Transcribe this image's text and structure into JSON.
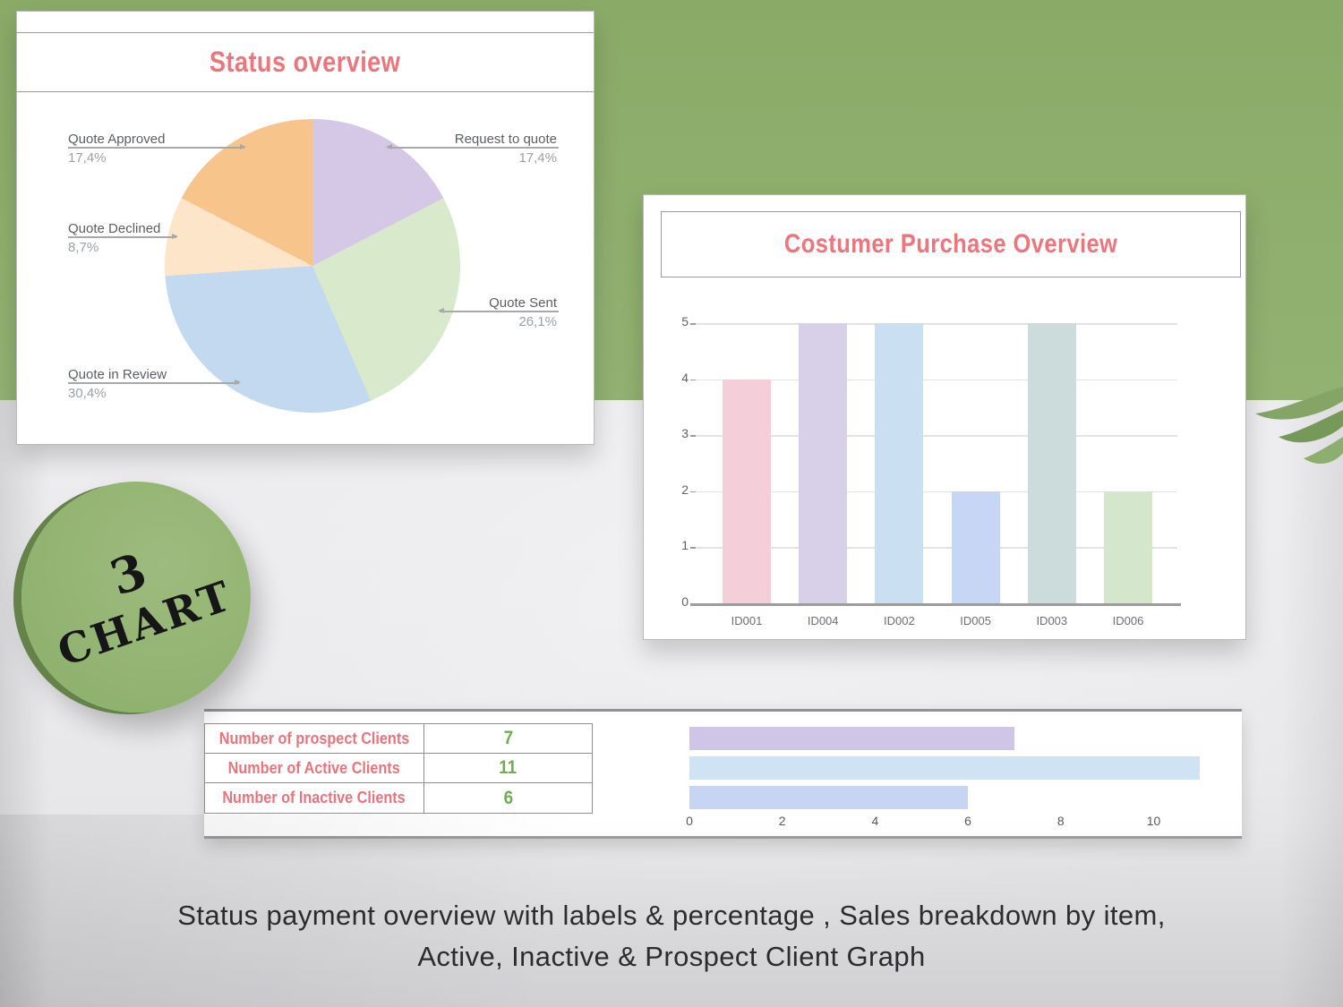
{
  "badge": {
    "number": "3",
    "label": "CHART"
  },
  "caption": {
    "line1": "Status payment overview with labels & percentage , Sales breakdown by item,",
    "line2": "Active, Inactive & Prospect Client Graph"
  },
  "colors": {
    "background_green": "#8fb06e",
    "backdrop_gray": "#e9e9eb",
    "title_pink": "#ed767d",
    "table_label_pink": "#e9747c",
    "value_green": "#6fae52",
    "pie_label_gray": "#5b5f63",
    "pie_pct_gray": "#9ba0a5"
  },
  "chart_data": [
    {
      "type": "pie",
      "title": "Status overview",
      "start_angle_deg": 0,
      "direction": "clockwise",
      "slices": [
        {
          "label": "Request to quote",
          "value": 17.4,
          "pct_label": "17,4%",
          "color": "#d5c8e6"
        },
        {
          "label": "Quote Sent",
          "value": 26.1,
          "pct_label": "26,1%",
          "color": "#d9e9cc"
        },
        {
          "label": "Quote in Review",
          "value": 30.4,
          "pct_label": "30,4%",
          "color": "#c3d9f0"
        },
        {
          "label": "Quote Declined",
          "value": 8.7,
          "pct_label": "8,7%",
          "color": "#fce5c8"
        },
        {
          "label": "Quote Approved",
          "value": 17.4,
          "pct_label": "17,4%",
          "color": "#f7c58c"
        }
      ]
    },
    {
      "type": "bar",
      "title": "Costumer Purchase Overview",
      "categories": [
        "ID001",
        "ID004",
        "ID002",
        "ID005",
        "ID003",
        "ID006"
      ],
      "values": [
        4,
        5,
        5,
        2,
        5,
        2
      ],
      "bar_colors": [
        "#f4cfd9",
        "#d8cfe9",
        "#cbdff2",
        "#c6d6f4",
        "#ccdcdc",
        "#d4e6cc"
      ],
      "ylim": [
        0,
        5
      ],
      "yticks": [
        0,
        1,
        2,
        3,
        4,
        5
      ],
      "grid": true,
      "legend": "none"
    },
    {
      "type": "bar-horizontal",
      "rows": [
        {
          "label": "Number of prospect Clients",
          "value": 7,
          "bar_color": "#cfc5e6"
        },
        {
          "label": "Number of Active Clients",
          "value": 11,
          "bar_color": "#d0e3f5"
        },
        {
          "label": "Number of Inactive Clients",
          "value": 6,
          "bar_color": "#c7d5f3"
        }
      ],
      "xticks": [
        0,
        2,
        4,
        6,
        8,
        10
      ],
      "xlim": [
        0,
        11.9
      ],
      "grid": false
    }
  ]
}
